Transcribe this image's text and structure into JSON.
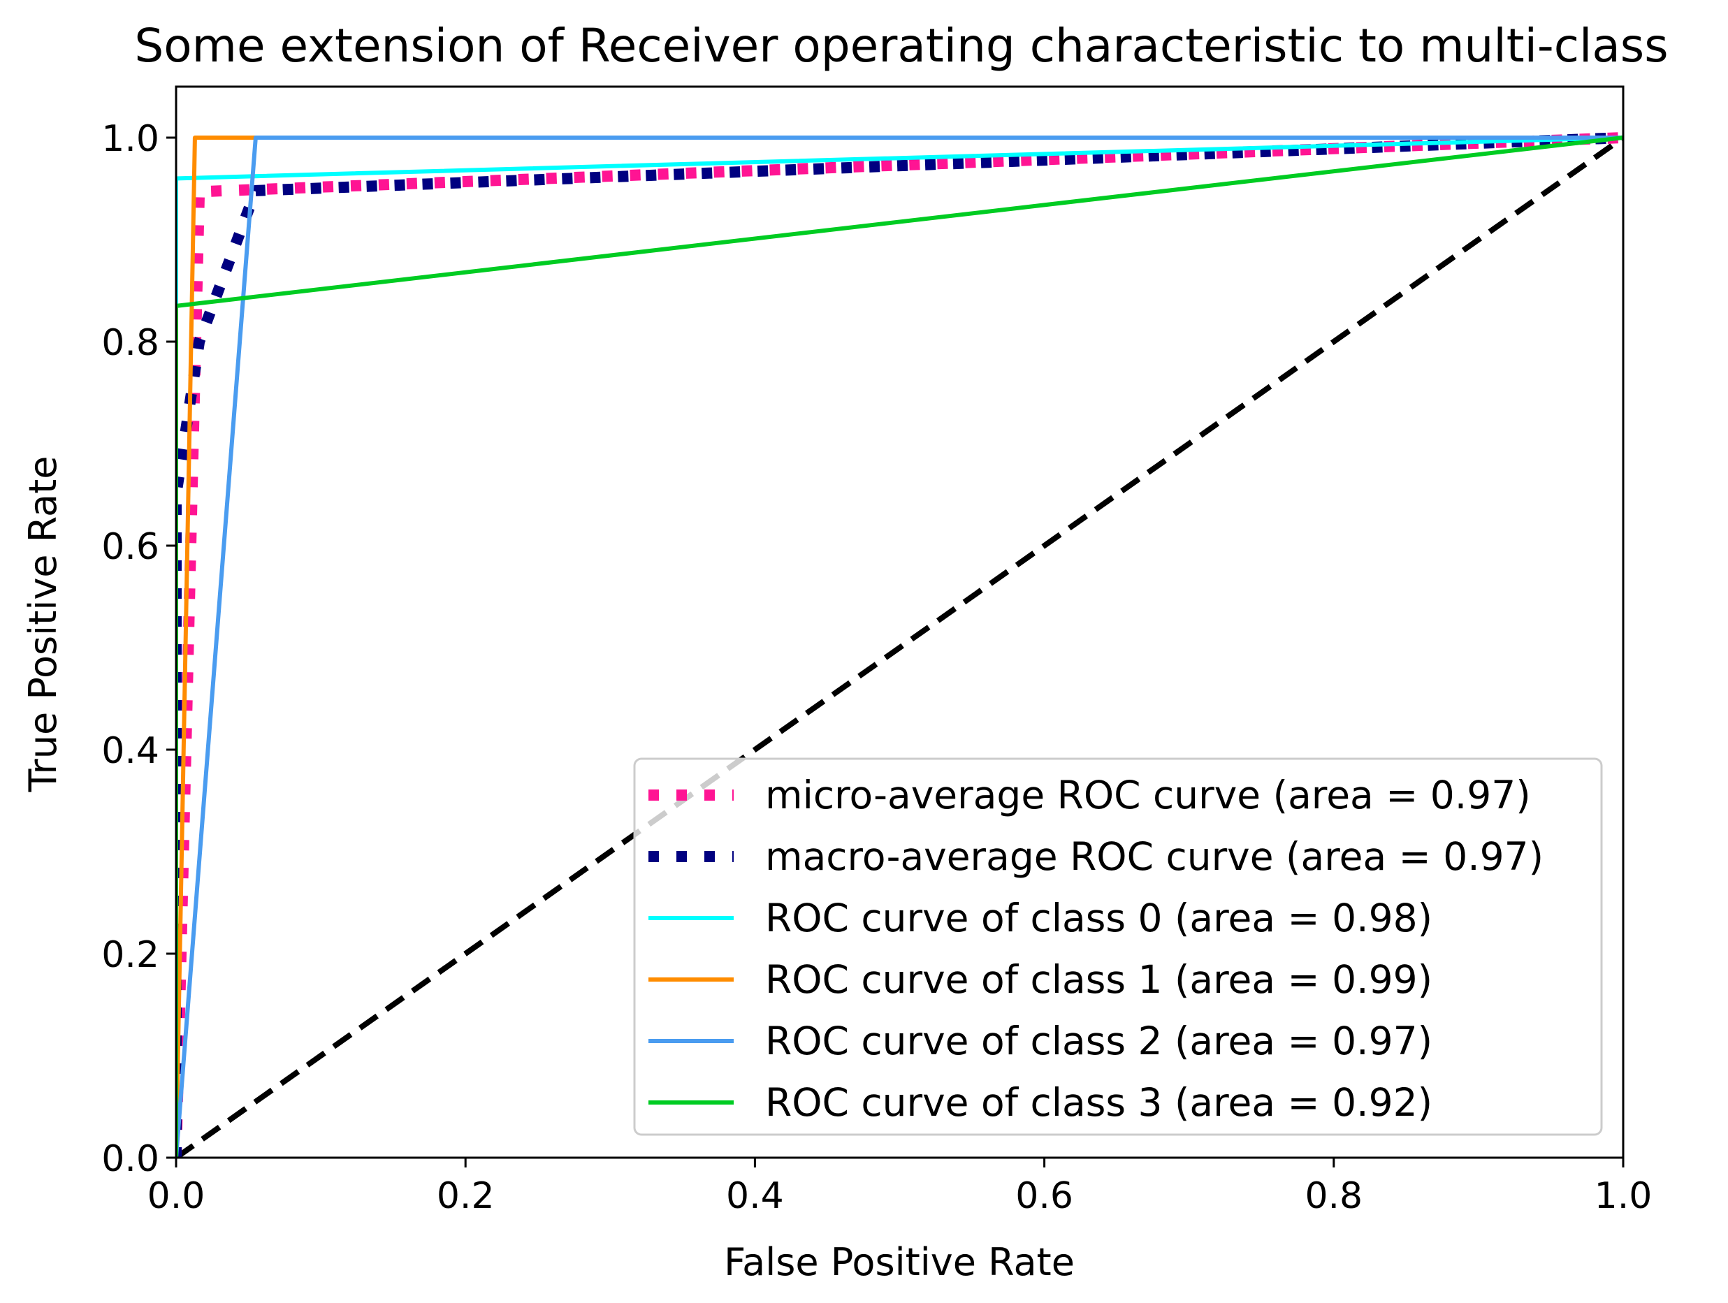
{
  "chart_data": {
    "type": "line",
    "title": "Some extension of Receiver operating characteristic to multi-class",
    "xlabel": "False Positive Rate",
    "ylabel": "True Positive Rate",
    "xlim": [
      0.0,
      1.0
    ],
    "ylim": [
      0.0,
      1.05
    ],
    "grid": false,
    "legend_position": "lower-right",
    "xticks": [
      "0.0",
      "0.2",
      "0.4",
      "0.6",
      "0.8",
      "1.0"
    ],
    "yticks": [
      "0.0",
      "0.2",
      "0.4",
      "0.6",
      "0.8",
      "1.0"
    ],
    "series": [
      {
        "name": "micro-average ROC curve (area = 0.97)",
        "color": "#ff1493",
        "style": "dotted",
        "x": [
          0.0,
          0.016,
          1.0
        ],
        "y": [
          0.0,
          0.947,
          1.0
        ]
      },
      {
        "name": "macro-average ROC curve (area = 0.97)",
        "color": "#000080",
        "style": "dotted",
        "x": [
          0.0,
          0.0,
          0.016,
          0.055,
          1.0
        ],
        "y": [
          0.0,
          0.65,
          0.8,
          0.948,
          1.0
        ]
      },
      {
        "name": "ROC curve of class 0 (area = 0.98)",
        "color": "#00ffff",
        "style": "solid",
        "x": [
          0.0,
          0.0,
          1.0
        ],
        "y": [
          0.0,
          0.96,
          1.0
        ]
      },
      {
        "name": "ROC curve of class 1 (area = 0.99)",
        "color": "#ff8c00",
        "style": "solid",
        "x": [
          0.0,
          0.013,
          0.055,
          1.0
        ],
        "y": [
          0.0,
          1.0,
          1.0,
          1.0
        ]
      },
      {
        "name": "ROC curve of class 2 (area = 0.97)",
        "color": "#4a9cf0",
        "style": "solid",
        "x": [
          0.0,
          0.055,
          1.0
        ],
        "y": [
          0.0,
          1.0,
          1.0
        ]
      },
      {
        "name": "ROC curve of class 3 (area = 0.92)",
        "color": "#00cc22",
        "style": "solid",
        "x": [
          0.0,
          0.0,
          1.0
        ],
        "y": [
          0.0,
          0.835,
          1.0
        ]
      }
    ],
    "reference_line": {
      "color": "#000000",
      "style": "dashed",
      "x": [
        0.0,
        1.0
      ],
      "y": [
        0.0,
        1.0
      ]
    }
  }
}
